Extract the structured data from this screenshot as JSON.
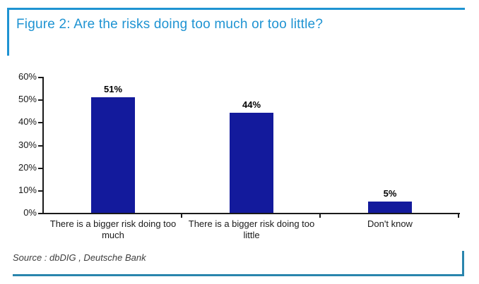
{
  "figure": {
    "title": "Figure 2: Are the risks doing too much or too little?",
    "source": "Source : dbDIG , Deutsche Bank"
  },
  "colors": {
    "accent_blue": "#1e93d2",
    "bottom_border_blue": "#2a85ad",
    "bar_fill_navy": "#131a9c",
    "axis_black": "#1a1a1a",
    "label_text": "#1a1a1a",
    "source_text": "#3d3d3d"
  },
  "chart_data": {
    "type": "bar",
    "categories": [
      "There is a bigger risk doing too much",
      "There is a bigger risk doing too little",
      "Don't know"
    ],
    "values": [
      51,
      44,
      5
    ],
    "value_labels": [
      "51%",
      "44%",
      "5%"
    ],
    "title": "Figure 2: Are the risks doing too much or too little?",
    "xlabel": "",
    "ylabel": "",
    "ylim": [
      0,
      60
    ],
    "yticks": [
      0,
      10,
      20,
      30,
      40,
      50,
      60
    ],
    "ytick_suffix": "%",
    "grid": false,
    "legend_position": "none",
    "data_labels": true
  }
}
